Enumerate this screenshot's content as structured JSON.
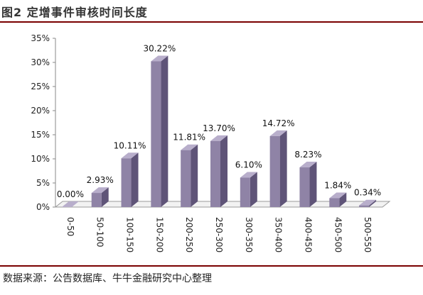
{
  "header": {
    "title": "图2 定增事件审核时间长度"
  },
  "footer": {
    "source": "数据来源：公告数据库、牛牛金融研究中心整理"
  },
  "colors": {
    "bar_front": "#8f83a6",
    "bar_side": "#5f5478",
    "bar_top": "#b8aecb",
    "rule": "#7a0000"
  },
  "chart_data": {
    "type": "bar",
    "title": "",
    "xlabel": "",
    "ylabel": "",
    "categories": [
      "0-50",
      "50-100",
      "100-150",
      "150-200",
      "200-250",
      "250-300",
      "300-350",
      "350-400",
      "400-450",
      "450-500",
      "500-550"
    ],
    "values": [
      0.0,
      2.93,
      10.11,
      30.22,
      11.81,
      13.7,
      6.1,
      14.72,
      8.23,
      1.84,
      0.34
    ],
    "data_labels": [
      "0.00%",
      "2.93%",
      "10.11%",
      "30.22%",
      "11.81%",
      "13.70%",
      "6.10%",
      "14.72%",
      "8.23%",
      "1.84%",
      "0.34%"
    ],
    "yticks": [
      "0%",
      "5%",
      "10%",
      "15%",
      "20%",
      "25%",
      "30%",
      "35%"
    ],
    "ylim": [
      0,
      35
    ],
    "grid": false,
    "legend": "none"
  }
}
